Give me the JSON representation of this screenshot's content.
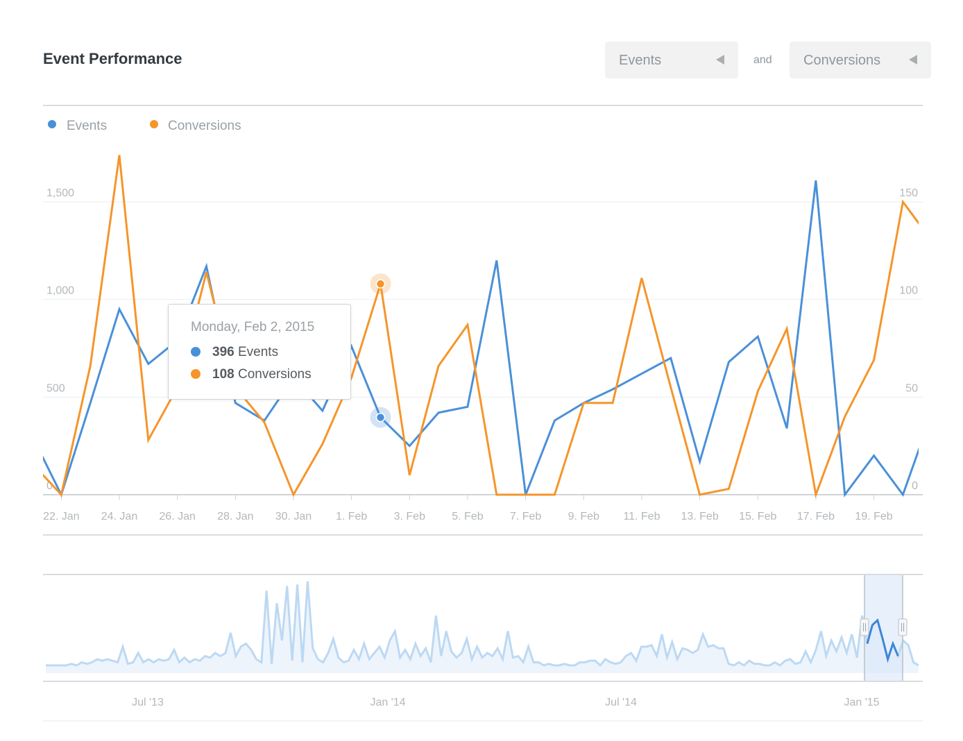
{
  "header": {
    "title": "Event Performance",
    "metric1": "Events",
    "connector": "and",
    "metric2": "Conversions"
  },
  "tooltip": {
    "date": "Monday, Feb 2, 2015",
    "events_value": "396",
    "events_label": "Events",
    "conversions_value": "108",
    "conversions_label": "Conversions"
  },
  "colors": {
    "events": "#4a90d9",
    "conversions": "#f5952a",
    "navigator": "#bcd9f3",
    "navigator_selected": "#3f86d6"
  },
  "chart_data": [
    {
      "type": "line",
      "x": [
        "21. Jan",
        "22. Jan",
        "23. Jan",
        "24. Jan",
        "25. Jan",
        "26. Jan",
        "27. Jan",
        "28. Jan",
        "29. Jan",
        "30. Jan",
        "31. Jan",
        "1. Feb",
        "2. Feb",
        "3. Feb",
        "4. Feb",
        "5. Feb",
        "6. Feb",
        "7. Feb",
        "8. Feb",
        "9. Feb",
        "10. Feb",
        "11. Feb",
        "12. Feb",
        "13. Feb",
        "14. Feb",
        "15. Feb",
        "16. Feb",
        "17. Feb",
        "18. Feb",
        "19. Feb",
        "20. Feb",
        "21. Feb"
      ],
      "x_tick_labels": [
        "22. Jan",
        "24. Jan",
        "26. Jan",
        "28. Jan",
        "30. Jan",
        "1. Feb",
        "3. Feb",
        "5. Feb",
        "7. Feb",
        "9. Feb",
        "11. Feb",
        "13. Feb",
        "15. Feb",
        "17. Feb",
        "19. Feb"
      ],
      "series": [
        {
          "name": "Events",
          "axis": "left",
          "values": [
            300,
            0,
            470,
            950,
            670,
            790,
            1170,
            470,
            380,
            600,
            430,
            760,
            396,
            250,
            420,
            450,
            1200,
            0,
            380,
            470,
            540,
            620,
            700,
            170,
            680,
            810,
            340,
            1610,
            0,
            200,
            0,
            420
          ]
        },
        {
          "name": "Conversions",
          "axis": "right",
          "values": [
            16,
            0,
            66,
            174,
            28,
            55,
            114,
            55,
            37,
            0,
            26,
            60,
            108,
            10,
            66,
            87,
            0,
            0,
            0,
            47,
            47,
            111,
            55,
            0,
            3,
            53,
            85,
            0,
            40,
            69,
            150,
            130
          ]
        }
      ],
      "y_left": {
        "ticks": [
          "0",
          "500",
          "1,000",
          "1,500"
        ],
        "range": [
          0,
          1500
        ]
      },
      "y_right": {
        "ticks": [
          "0",
          "50",
          "100",
          "150"
        ],
        "range": [
          0,
          150
        ]
      },
      "highlighted_x": "2. Feb",
      "grid": true,
      "legend": "top-left"
    },
    {
      "type": "area",
      "role": "navigator",
      "x_tick_labels": [
        "Jul '13",
        "Jan '14",
        "Jul '14",
        "Jan '15"
      ],
      "values": [
        40,
        40,
        40,
        40,
        40,
        50,
        40,
        60,
        50,
        60,
        80,
        70,
        80,
        70,
        60,
        160,
        50,
        60,
        120,
        60,
        80,
        60,
        80,
        70,
        80,
        140,
        60,
        90,
        60,
        80,
        70,
        100,
        90,
        120,
        100,
        120,
        250,
        100,
        160,
        180,
        140,
        80,
        60,
        520,
        50,
        440,
        200,
        550,
        70,
        560,
        60,
        580,
        150,
        80,
        60,
        120,
        210,
        90,
        60,
        70,
        140,
        80,
        180,
        80,
        120,
        160,
        90,
        200,
        260,
        90,
        140,
        80,
        180,
        100,
        150,
        60,
        360,
        100,
        260,
        130,
        90,
        120,
        210,
        80,
        160,
        90,
        120,
        100,
        150,
        80,
        260,
        90,
        100,
        60,
        160,
        60,
        60,
        40,
        50,
        40,
        40,
        50,
        40,
        40,
        60,
        60,
        70,
        70,
        40,
        80,
        60,
        50,
        60,
        100,
        120,
        70,
        160,
        160,
        170,
        100,
        240,
        90,
        190,
        80,
        150,
        140,
        120,
        140,
        240,
        160,
        170,
        150,
        150,
        50,
        40,
        60,
        40,
        70,
        50,
        50,
        40,
        40,
        60,
        40,
        70,
        80,
        50,
        60,
        130,
        60,
        140,
        260,
        100,
        200,
        130,
        220,
        120,
        240,
        90,
        360,
        180,
        300,
        330,
        210,
        80,
        180,
        100,
        200,
        170,
        60,
        40
      ]
    }
  ]
}
